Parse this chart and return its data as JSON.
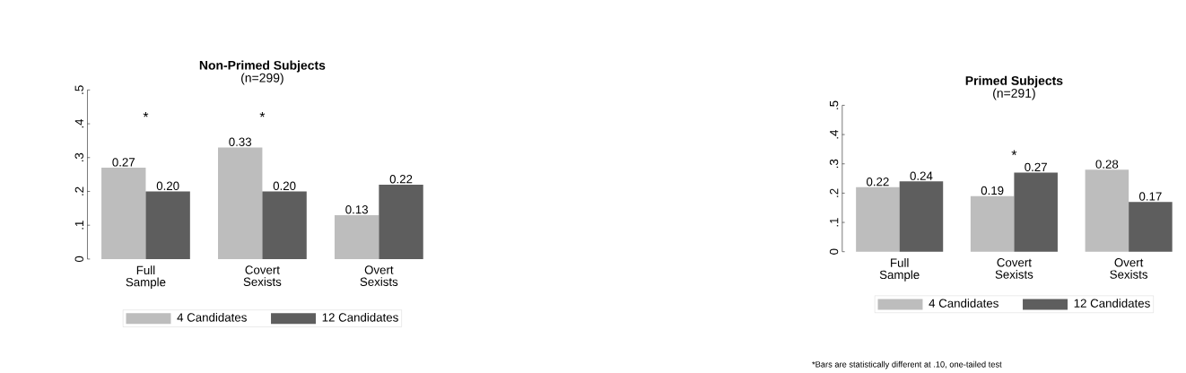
{
  "chart_data": [
    {
      "type": "bar",
      "title": "Non-Primed Subjects",
      "subtitle": "(n=299)",
      "categories": [
        "Full Sample",
        "Covert Sexists",
        "Overt Sexists"
      ],
      "series": [
        {
          "name": "4 Candidates",
          "color": "#bdbdbd",
          "values": [
            0.27,
            0.33,
            0.13
          ],
          "value_labels": [
            "0.27",
            "0.33",
            "0.13"
          ]
        },
        {
          "name": "12 Candidates",
          "color": "#5e5e5e",
          "values": [
            0.2,
            0.2,
            0.22
          ],
          "value_labels": [
            "0.20",
            "0.20",
            "0.22"
          ]
        }
      ],
      "ylim": [
        0,
        0.5
      ],
      "yticks": [
        {
          "value": 0,
          "label": "0"
        },
        {
          "value": 0.1,
          "label": ".1"
        },
        {
          "value": 0.2,
          "label": ".2"
        },
        {
          "value": 0.3,
          "label": ".3"
        },
        {
          "value": 0.4,
          "label": ".4"
        },
        {
          "value": 0.5,
          "label": ".5"
        }
      ],
      "legend": "bottom",
      "grid": false,
      "annotations": [
        "*",
        "*"
      ]
    },
    {
      "type": "bar",
      "title": "Primed Subjects",
      "subtitle": "(n=291)",
      "categories": [
        "Full Sample",
        "Covert Sexists",
        "Overt Sexists"
      ],
      "series": [
        {
          "name": "4 Candidates",
          "color": "#bdbdbd",
          "values": [
            0.22,
            0.19,
            0.28
          ],
          "value_labels": [
            "0.22",
            "0.19",
            "0.28"
          ]
        },
        {
          "name": "12 Candidates",
          "color": "#5e5e5e",
          "values": [
            0.24,
            0.27,
            0.17
          ],
          "value_labels": [
            "0.24",
            "0.27",
            "0.17"
          ]
        }
      ],
      "ylim": [
        0,
        0.5
      ],
      "yticks": [
        {
          "value": 0,
          "label": "0"
        },
        {
          "value": 0.1,
          "label": ".1"
        },
        {
          "value": 0.2,
          "label": ".2"
        },
        {
          "value": 0.3,
          "label": ".3"
        },
        {
          "value": 0.4,
          "label": ".4"
        },
        {
          "value": 0.5,
          "label": ".5"
        }
      ],
      "legend": "bottom",
      "grid": false,
      "annotations": [
        "*",
        "*Bars are statistically different at .10, one-tailed test"
      ]
    }
  ]
}
